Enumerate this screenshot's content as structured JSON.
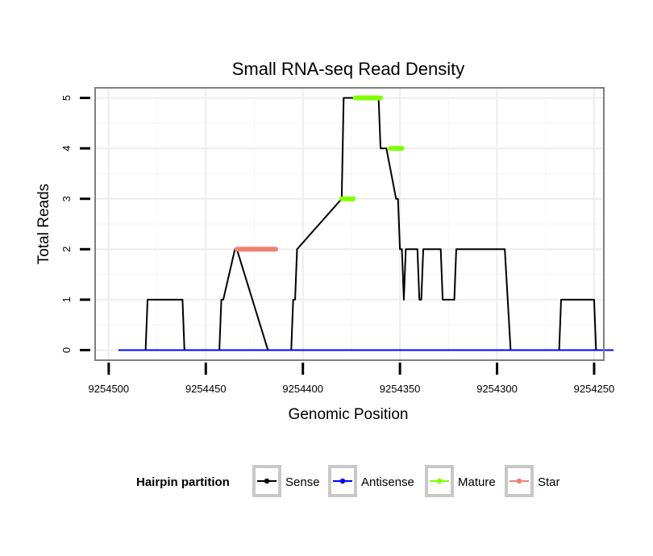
{
  "chart_data": {
    "type": "line",
    "title": "Small RNA-seq Read Density",
    "xlabel": "Genomic Position",
    "ylabel": "Total Reads",
    "x_reversed": true,
    "xlim": [
      9254507,
      9254245
    ],
    "ylim": [
      -0.2,
      5.2
    ],
    "x_ticks": [
      9254500,
      9254450,
      9254400,
      9254350,
      9254300,
      9254250
    ],
    "x_tick_labels": [
      "9254500",
      "9254450",
      "9254400",
      "9254350",
      "9254300",
      "9254250"
    ],
    "y_ticks": [
      0,
      1,
      2,
      3,
      4,
      5
    ],
    "y_tick_labels": [
      "0",
      "1",
      "2",
      "3",
      "4",
      "5"
    ],
    "grid": true,
    "legend": {
      "title": "Hairpin partition",
      "position": "bottom",
      "entries": [
        {
          "label": "Sense",
          "color": "#000000"
        },
        {
          "label": "Antisense",
          "color": "#0000ff"
        },
        {
          "label": "Mature",
          "color": "#7fff00"
        },
        {
          "label": "Star",
          "color": "#f08070"
        }
      ]
    },
    "series": [
      {
        "name": "Sense",
        "color": "#000000",
        "x": [
          9254495,
          9254481,
          9254480,
          9254462,
          9254461,
          9254443,
          9254442,
          9254441,
          9254435,
          9254434,
          9254418,
          9254406,
          9254405,
          9254404,
          9254403,
          9254380,
          9254379,
          9254377,
          9254376,
          9254375,
          9254374,
          9254373,
          9254361,
          9254360,
          9254358,
          9254357,
          9254352,
          9254351,
          9254350,
          9254349,
          9254348,
          9254347,
          9254346,
          9254341,
          9254340,
          9254339,
          9254338,
          9254329,
          9254328,
          9254322,
          9254321,
          9254296,
          9254293,
          9254268,
          9254267,
          9254250,
          9254249,
          9254240
        ],
        "y": [
          0,
          0,
          1,
          1,
          0,
          0,
          1,
          1,
          2,
          2,
          0,
          0,
          1,
          1,
          2,
          3,
          5,
          5,
          5,
          5,
          5,
          5,
          5,
          4,
          4,
          4,
          3,
          3,
          2,
          2,
          1,
          2,
          2,
          2,
          1,
          1,
          2,
          2,
          1,
          1,
          2,
          2,
          0,
          0,
          1,
          1,
          0,
          0
        ]
      },
      {
        "name": "Antisense",
        "color": "#0000ff",
        "x": [
          9254495,
          9254240
        ],
        "y": [
          0,
          0
        ]
      }
    ],
    "segments": [
      {
        "name": "Star",
        "color": "#f08070",
        "y": 2,
        "x_start": 9254434,
        "x_end": 9254414
      },
      {
        "name": "Mature",
        "color": "#7fff00",
        "y": 3,
        "x_start": 9254380,
        "x_end": 9254374
      },
      {
        "name": "Mature",
        "color": "#7fff00",
        "y": 5,
        "x_start": 9254373,
        "x_end": 9254360
      },
      {
        "name": "Mature",
        "color": "#7fff00",
        "y": 4,
        "x_start": 9254355,
        "x_end": 9254349
      }
    ]
  }
}
